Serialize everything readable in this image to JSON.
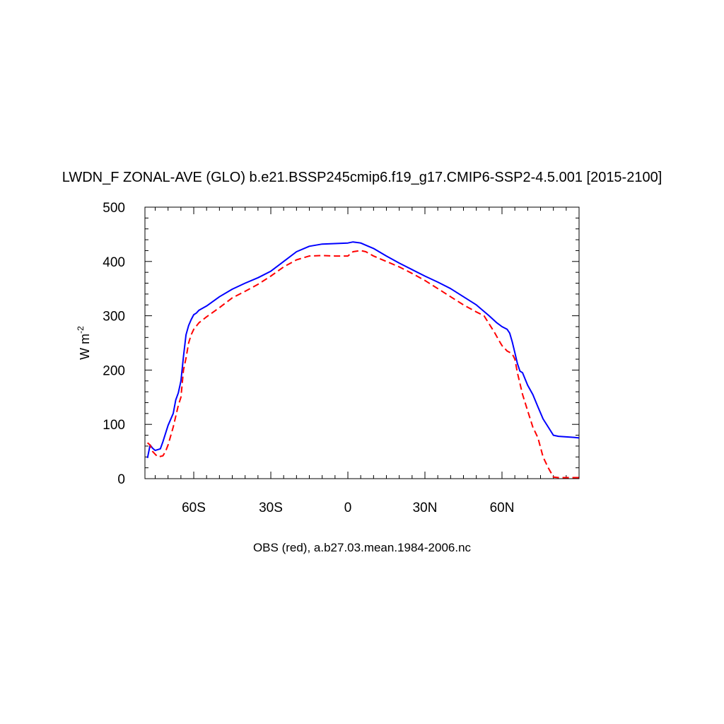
{
  "chart_data": {
    "type": "line",
    "title": "LWDN_F ZONAL-AVE (GLO) b.e21.BSSP245cmip6.f19_g17.CMIP6-SSP2-4.5.001 [2015-2100]",
    "footer": "OBS (red), a.b27.03.mean.1984-2006.nc",
    "ylabel_main": "W m",
    "ylabel_sup": "-2",
    "xlim": [
      -79,
      90
    ],
    "ylim": [
      0,
      500
    ],
    "x_ticks": [
      {
        "value": -60,
        "label": "60S"
      },
      {
        "value": -30,
        "label": "30S"
      },
      {
        "value": 0,
        "label": "0"
      },
      {
        "value": 30,
        "label": "30N"
      },
      {
        "value": 60,
        "label": "60N"
      }
    ],
    "y_ticks": [
      {
        "value": 0,
        "label": "0"
      },
      {
        "value": 100,
        "label": "100"
      },
      {
        "value": 200,
        "label": "200"
      },
      {
        "value": 300,
        "label": "300"
      },
      {
        "value": 400,
        "label": "400"
      },
      {
        "value": 500,
        "label": "500"
      }
    ],
    "grid": false,
    "series": [
      {
        "color": "#0000ff",
        "dash": "solid",
        "x": [
          -78,
          -77,
          -76,
          -75,
          -73,
          -72,
          -70,
          -68,
          -67,
          -66,
          -65,
          -64,
          -63,
          -62,
          -61,
          -60,
          -59,
          -58,
          -55,
          -50,
          -45,
          -40,
          -35,
          -30,
          -25,
          -20,
          -15,
          -10,
          -5,
          0,
          2,
          5,
          7,
          10,
          15,
          20,
          25,
          30,
          35,
          40,
          45,
          50,
          55,
          58,
          60,
          62,
          63,
          64,
          65,
          66,
          67,
          68,
          70,
          72,
          74,
          76,
          78,
          80,
          82,
          85,
          88,
          90
        ],
        "y": [
          38,
          62,
          56,
          52,
          55,
          68,
          98,
          120,
          145,
          158,
          180,
          225,
          265,
          282,
          293,
          302,
          305,
          310,
          318,
          335,
          349,
          360,
          370,
          382,
          400,
          418,
          428,
          432,
          433,
          434,
          436,
          434,
          430,
          424,
          410,
          397,
          385,
          373,
          362,
          350,
          335,
          320,
          300,
          287,
          280,
          275,
          268,
          252,
          232,
          212,
          198,
          195,
          172,
          155,
          132,
          110,
          95,
          80,
          78,
          77,
          76,
          75
        ]
      },
      {
        "color": "#ff0000",
        "dash": "dashed",
        "x": [
          -78,
          -77,
          -76,
          -75,
          -74,
          -72,
          -71,
          -70,
          -68,
          -66,
          -65,
          -64,
          -63,
          -62,
          -61,
          -60,
          -58,
          -55,
          -50,
          -45,
          -40,
          -35,
          -30,
          -25,
          -20,
          -15,
          -10,
          -5,
          0,
          2,
          5,
          7,
          10,
          15,
          20,
          25,
          30,
          35,
          40,
          45,
          50,
          53,
          55,
          57,
          59,
          60,
          62,
          64,
          65,
          66,
          68,
          70,
          72,
          74,
          76,
          78,
          80,
          82,
          84,
          86,
          88,
          90
        ],
        "y": [
          66,
          62,
          50,
          45,
          40,
          42,
          50,
          62,
          95,
          135,
          150,
          200,
          222,
          250,
          265,
          275,
          287,
          298,
          315,
          333,
          345,
          358,
          373,
          390,
          403,
          410,
          411,
          410,
          410,
          418,
          420,
          418,
          410,
          400,
          390,
          378,
          365,
          350,
          335,
          320,
          307,
          300,
          285,
          270,
          253,
          245,
          235,
          230,
          220,
          195,
          155,
          125,
          95,
          75,
          40,
          20,
          3,
          2,
          2,
          2,
          2,
          2
        ]
      }
    ]
  }
}
